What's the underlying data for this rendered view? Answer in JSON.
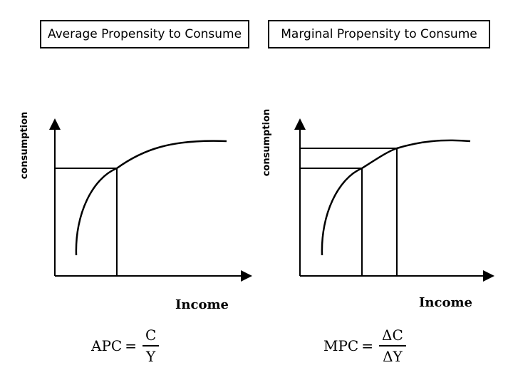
{
  "panels": {
    "left": {
      "title": "Average Propensity to Consume",
      "ylabel": "consumption",
      "xlabel": "Income",
      "formula": {
        "lhs": "APC",
        "eq": "=",
        "num": "C",
        "den": "Y"
      }
    },
    "right": {
      "title": "Marginal Propensity to Consume",
      "ylabel": "consumption",
      "xlabel": "Income",
      "formula": {
        "lhs": "MPC",
        "eq": "=",
        "num": "ΔC",
        "den": "ΔY"
      }
    }
  }
}
